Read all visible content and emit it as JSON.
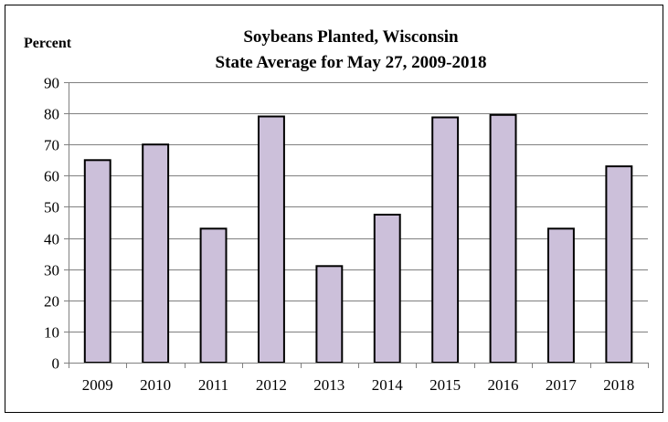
{
  "chart_data": {
    "type": "bar",
    "title": [
      "Soybeans Planted, Wisconsin",
      "State Average for May 27, 2009-2018"
    ],
    "ylabel": "Percent",
    "xlabel": "",
    "categories": [
      "2009",
      "2010",
      "2011",
      "2012",
      "2013",
      "2014",
      "2015",
      "2016",
      "2017",
      "2018"
    ],
    "values": [
      65,
      70,
      43,
      79,
      31,
      47.5,
      78.7,
      79.5,
      43,
      63
    ],
    "ylim": [
      0,
      90
    ],
    "yticks": [
      0,
      10,
      20,
      30,
      40,
      50,
      60,
      70,
      80,
      90
    ],
    "grid": true,
    "legend": "none",
    "colors": {
      "bar_fill": "#ccc0da",
      "bar_stroke": "#000000",
      "grid": "#808080",
      "axis": "#808080",
      "frame": "#000000"
    }
  }
}
